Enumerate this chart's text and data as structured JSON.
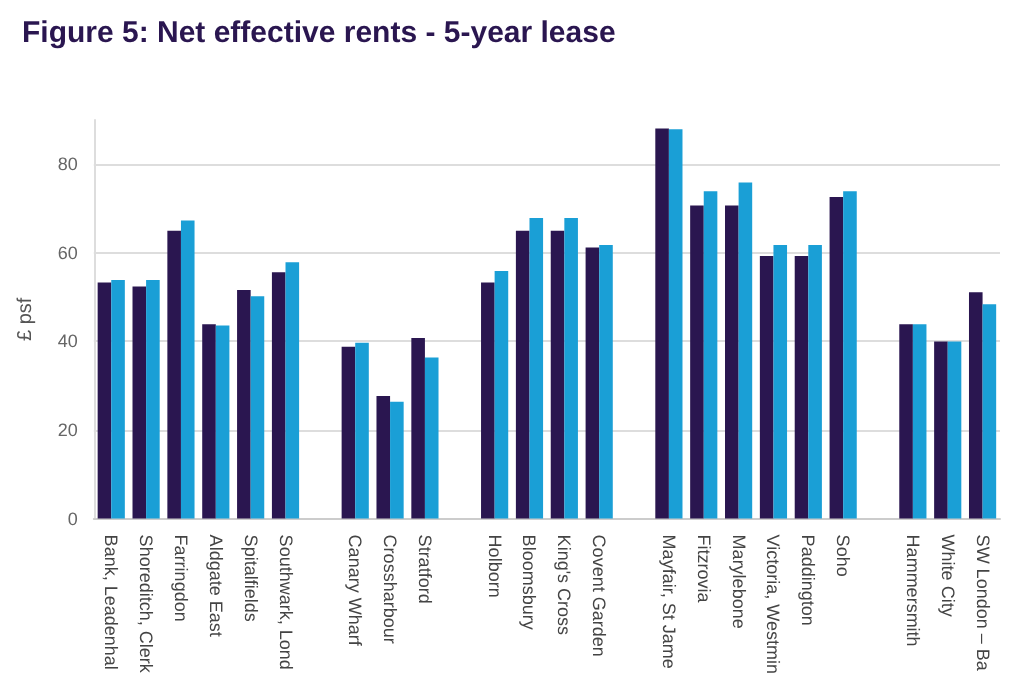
{
  "chart_data": {
    "type": "bar",
    "title": "Figure 5: Net effective rents - 5-year lease",
    "ylabel": "£ psf",
    "categories": [
      "Bank, Leadenhal",
      "Shoreditch, Clerk",
      "Farringdon",
      "Aldgate East",
      "Spitalfields",
      "Southwark, Lond",
      null,
      "Canary Wharf",
      "Crossharbour",
      "Stratford",
      null,
      "Holborn",
      "Bloomsbury",
      "King's Cross",
      "Covent Garden",
      null,
      "Mayfair, St Jame",
      "Fitzrovia",
      "Marylebone",
      "Victoria, Westmin",
      "Paddington",
      "Soho",
      null,
      "Hammersmith",
      "White City",
      "SW London – Ba"
    ],
    "series": [
      {
        "color": "#2a1650",
        "values": [
          53.3,
          52.4,
          65,
          43.9,
          51.6,
          55.6,
          null,
          38.8,
          27.7,
          40.8,
          null,
          53.3,
          65,
          65,
          61.2,
          null,
          88.1,
          70.7,
          70.7,
          59.3,
          59.3,
          72.6,
          null,
          43.9,
          40,
          51.1
        ]
      },
      {
        "color": "#1a9fd6",
        "values": [
          53.9,
          53.9,
          67.3,
          43.6,
          50.2,
          57.9,
          null,
          39.7,
          26.4,
          36.4,
          null,
          55.9,
          67.9,
          67.9,
          61.8,
          null,
          87.9,
          73.9,
          75.9,
          61.8,
          61.8,
          73.9,
          null,
          43.9,
          40,
          48.4
        ]
      }
    ],
    "ylim": [
      0,
      90
    ],
    "yticks": [
      0,
      20,
      40,
      60,
      80
    ],
    "grid": "y"
  }
}
